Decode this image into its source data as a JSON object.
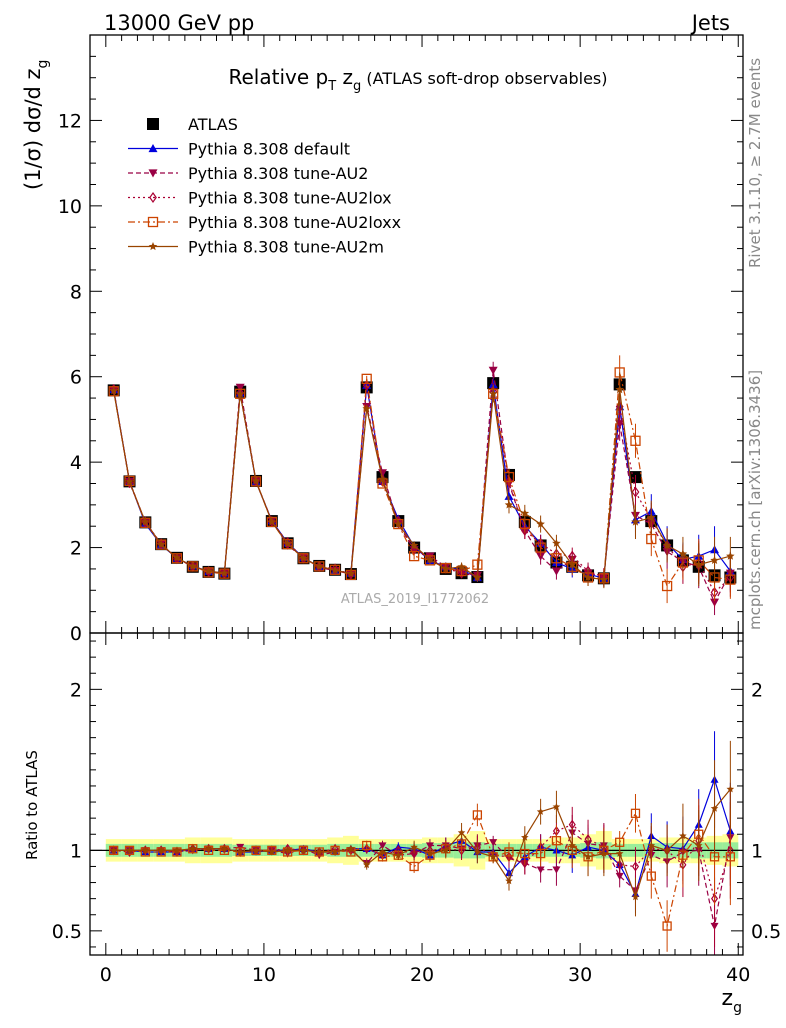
{
  "header": {
    "left": "13000 GeV pp",
    "right": "Jets",
    "side_rivet": "Rivet 3.1.10, ≥ 2.7M events",
    "side_mcplots": "mcplots.cern.ch [arXiv:1306.3436]"
  },
  "chart_data": {
    "type": "scatter",
    "title_main": "Relative p",
    "title_sub": "T",
    "title_mid": " z",
    "title_sub2": "g",
    "title_rest": " (ATLAS soft-drop observables)",
    "analysis_label": "ATLAS_2019_I1772062",
    "xlabel": "z",
    "xlabel_sub": "g",
    "ylabel": "(1/σ) dσ/d z",
    "ylabel_sub": "g",
    "ratio_ylabel": "Ratio to ATLAS",
    "xlim": [
      -1,
      40.3
    ],
    "ylim": [
      0,
      14
    ],
    "ratio_ylim": [
      0.35,
      2.35
    ],
    "grid": false,
    "legend_placement": "top-left",
    "xticks": [
      "0",
      "10",
      "20",
      "30",
      "40"
    ],
    "yticks": [
      "0",
      "2",
      "4",
      "6",
      "8",
      "10",
      "12"
    ],
    "ratio_yticks": [
      "0.5",
      "1",
      "2"
    ],
    "x": [
      0.5,
      1.5,
      2.5,
      3.5,
      4.5,
      5.5,
      6.5,
      7.5,
      8.5,
      9.5,
      10.5,
      11.5,
      12.5,
      13.5,
      14.5,
      15.5,
      16.5,
      17.5,
      18.5,
      19.5,
      20.5,
      21.5,
      22.5,
      23.5,
      24.5,
      25.5,
      26.5,
      27.5,
      28.5,
      29.5,
      30.5,
      31.5,
      32.5,
      33.5,
      34.5,
      35.5,
      36.5,
      37.5,
      38.5,
      39.5
    ],
    "series": [
      {
        "name": "ATLAS",
        "color": "#000000",
        "marker": "square-filled",
        "line": "none",
        "values": [
          5.68,
          3.55,
          2.59,
          2.08,
          1.76,
          1.55,
          1.43,
          1.39,
          5.65,
          3.56,
          2.62,
          2.1,
          1.75,
          1.57,
          1.48,
          1.38,
          5.75,
          3.65,
          2.62,
          2.0,
          1.75,
          1.5,
          1.4,
          1.31,
          5.85,
          3.7,
          2.6,
          2.05,
          1.65,
          1.55,
          1.35,
          1.28,
          5.82,
          3.65,
          2.62,
          2.05,
          1.7,
          1.55,
          1.35,
          1.3
        ],
        "ratio_band_inner": [
          0.04,
          0.04,
          0.04,
          0.04,
          0.04,
          0.04,
          0.04,
          0.04,
          0.035,
          0.035,
          0.035,
          0.035,
          0.035,
          0.035,
          0.04,
          0.04,
          0.04,
          0.04,
          0.04,
          0.04,
          0.045,
          0.045,
          0.05,
          0.05,
          0.04,
          0.04,
          0.04,
          0.04,
          0.04,
          0.04,
          0.045,
          0.05,
          0.04,
          0.04,
          0.045,
          0.045,
          0.045,
          0.05,
          0.05,
          0.05
        ],
        "ratio_band_outer": [
          0.07,
          0.07,
          0.07,
          0.07,
          0.07,
          0.08,
          0.08,
          0.08,
          0.07,
          0.07,
          0.07,
          0.07,
          0.07,
          0.07,
          0.08,
          0.09,
          0.07,
          0.07,
          0.07,
          0.07,
          0.08,
          0.08,
          0.1,
          0.12,
          0.07,
          0.07,
          0.07,
          0.07,
          0.08,
          0.08,
          0.1,
          0.12,
          0.07,
          0.07,
          0.07,
          0.08,
          0.08,
          0.08,
          0.09,
          0.1
        ]
      },
      {
        "name": "Pythia 8.308 default",
        "color": "#0000dd",
        "marker": "triangle-up",
        "line": "solid",
        "values": [
          5.7,
          3.55,
          2.56,
          2.06,
          1.75,
          1.57,
          1.44,
          1.4,
          5.62,
          3.54,
          2.63,
          2.11,
          1.76,
          1.55,
          1.46,
          1.4,
          5.8,
          3.55,
          2.67,
          2.02,
          1.7,
          1.55,
          1.48,
          1.3,
          5.82,
          3.2,
          2.5,
          2.1,
          1.65,
          1.5,
          1.38,
          1.28,
          5.3,
          2.65,
          2.85,
          2.1,
          1.72,
          1.8,
          1.95,
          1.45
        ],
        "errors": [
          0.05,
          0.04,
          0.04,
          0.03,
          0.03,
          0.03,
          0.03,
          0.03,
          0.05,
          0.04,
          0.04,
          0.03,
          0.03,
          0.03,
          0.03,
          0.03,
          0.07,
          0.07,
          0.07,
          0.08,
          0.08,
          0.1,
          0.1,
          0.1,
          0.2,
          0.2,
          0.2,
          0.2,
          0.2,
          0.2,
          0.2,
          0.2,
          0.4,
          0.4,
          0.4,
          0.4,
          0.4,
          0.5,
          0.55,
          0.45
        ],
        "ratio": [
          1.0,
          1.0,
          0.99,
          0.99,
          0.99,
          1.01,
          1.01,
          1.01,
          0.99,
          0.99,
          1.0,
          1.0,
          1.01,
          0.99,
          0.99,
          1.01,
          1.01,
          0.97,
          1.02,
          1.01,
          0.97,
          1.03,
          1.06,
          0.99,
          0.99,
          0.86,
          0.96,
          1.02,
          1.0,
          0.97,
          1.02,
          1.0,
          0.91,
          0.73,
          1.09,
          1.02,
          1.01,
          1.16,
          1.44,
          1.12
        ],
        "ratio_err": [
          0.02,
          0.02,
          0.02,
          0.02,
          0.02,
          0.02,
          0.02,
          0.02,
          0.02,
          0.02,
          0.02,
          0.02,
          0.02,
          0.02,
          0.02,
          0.02,
          0.03,
          0.03,
          0.03,
          0.04,
          0.04,
          0.05,
          0.06,
          0.07,
          0.04,
          0.06,
          0.07,
          0.08,
          0.1,
          0.11,
          0.12,
          0.14,
          0.07,
          0.12,
          0.14,
          0.16,
          0.2,
          0.22,
          0.3,
          0.3
        ]
      },
      {
        "name": "Pythia 8.308 tune-AU2",
        "color": "#990044",
        "marker": "triangle-down",
        "line": "dashed",
        "values": [
          5.68,
          3.55,
          2.6,
          2.08,
          1.75,
          1.55,
          1.45,
          1.4,
          5.75,
          3.55,
          2.63,
          2.05,
          1.77,
          1.53,
          1.46,
          1.38,
          5.3,
          3.75,
          2.55,
          1.95,
          1.8,
          1.55,
          1.42,
          1.35,
          6.15,
          3.5,
          2.4,
          1.8,
          1.45,
          1.72,
          1.4,
          1.32,
          4.9,
          2.75,
          2.55,
          1.9,
          1.68,
          1.55,
          0.72,
          1.4
        ],
        "errors": [
          0.05,
          0.04,
          0.04,
          0.03,
          0.03,
          0.03,
          0.03,
          0.03,
          0.05,
          0.04,
          0.04,
          0.03,
          0.03,
          0.03,
          0.03,
          0.03,
          0.07,
          0.07,
          0.07,
          0.08,
          0.08,
          0.1,
          0.1,
          0.1,
          0.2,
          0.2,
          0.2,
          0.2,
          0.2,
          0.2,
          0.2,
          0.2,
          0.4,
          0.4,
          0.4,
          0.4,
          0.4,
          0.5,
          0.3,
          0.45
        ],
        "ratio": [
          1.0,
          1.0,
          1.0,
          1.0,
          0.99,
          1.0,
          1.01,
          1.01,
          1.02,
          1.0,
          1.0,
          0.98,
          1.01,
          0.97,
          0.99,
          1.0,
          0.92,
          1.03,
          0.97,
          0.98,
          1.03,
          1.03,
          1.01,
          1.03,
          1.05,
          0.95,
          0.92,
          0.88,
          0.88,
          1.11,
          1.04,
          1.03,
          0.84,
          0.75,
          0.97,
          0.93,
          0.99,
          1.0,
          0.53,
          1.08
        ],
        "ratio_err": [
          0.02,
          0.02,
          0.02,
          0.02,
          0.02,
          0.02,
          0.02,
          0.02,
          0.02,
          0.02,
          0.02,
          0.02,
          0.02,
          0.02,
          0.02,
          0.02,
          0.03,
          0.03,
          0.03,
          0.04,
          0.04,
          0.05,
          0.06,
          0.07,
          0.04,
          0.06,
          0.07,
          0.08,
          0.1,
          0.11,
          0.12,
          0.14,
          0.07,
          0.12,
          0.14,
          0.16,
          0.2,
          0.22,
          0.3,
          0.3
        ]
      },
      {
        "name": "Pythia 8.308 tune-AU2lox",
        "color": "#aa0033",
        "marker": "diamond-open",
        "line": "dotted",
        "values": [
          5.7,
          3.52,
          2.6,
          2.09,
          1.74,
          1.56,
          1.44,
          1.4,
          5.62,
          3.56,
          2.61,
          2.12,
          1.75,
          1.56,
          1.5,
          1.38,
          5.8,
          3.55,
          2.62,
          1.95,
          1.75,
          1.52,
          1.4,
          1.33,
          5.65,
          3.55,
          2.4,
          2.1,
          1.85,
          1.8,
          1.45,
          1.31,
          5.3,
          3.3,
          2.65,
          2.05,
          1.55,
          1.65,
          0.95,
          1.3
        ],
        "errors": [
          0.05,
          0.04,
          0.04,
          0.03,
          0.03,
          0.03,
          0.03,
          0.03,
          0.05,
          0.04,
          0.04,
          0.03,
          0.03,
          0.03,
          0.03,
          0.03,
          0.07,
          0.07,
          0.07,
          0.08,
          0.08,
          0.1,
          0.1,
          0.1,
          0.2,
          0.2,
          0.2,
          0.2,
          0.2,
          0.2,
          0.2,
          0.2,
          0.4,
          0.4,
          0.4,
          0.4,
          0.4,
          0.5,
          0.35,
          0.45
        ],
        "ratio": [
          1.0,
          0.99,
          1.0,
          1.0,
          0.99,
          1.01,
          1.01,
          1.01,
          0.99,
          1.0,
          1.0,
          1.01,
          1.0,
          0.99,
          1.01,
          1.0,
          1.01,
          0.97,
          1.0,
          0.98,
          1.0,
          1.01,
          1.0,
          1.02,
          0.97,
          0.96,
          0.92,
          1.02,
          1.12,
          1.16,
          1.07,
          1.02,
          0.91,
          0.9,
          1.01,
          1.0,
          0.91,
          1.06,
          0.7,
          1.0
        ],
        "ratio_err": [
          0.02,
          0.02,
          0.02,
          0.02,
          0.02,
          0.02,
          0.02,
          0.02,
          0.02,
          0.02,
          0.02,
          0.02,
          0.02,
          0.02,
          0.02,
          0.02,
          0.03,
          0.03,
          0.03,
          0.04,
          0.04,
          0.05,
          0.06,
          0.07,
          0.04,
          0.06,
          0.07,
          0.08,
          0.1,
          0.11,
          0.12,
          0.14,
          0.07,
          0.12,
          0.14,
          0.16,
          0.2,
          0.22,
          0.3,
          0.3
        ]
      },
      {
        "name": "Pythia 8.308 tune-AU2loxx",
        "color": "#cc4400",
        "marker": "square-open",
        "line": "dashdot",
        "values": [
          5.66,
          3.56,
          2.58,
          2.07,
          1.75,
          1.56,
          1.42,
          1.39,
          5.6,
          3.55,
          2.6,
          2.08,
          1.75,
          1.56,
          1.48,
          1.36,
          5.95,
          3.5,
          2.55,
          1.8,
          1.7,
          1.52,
          1.45,
          1.6,
          5.6,
          3.65,
          2.55,
          2.0,
          1.75,
          1.55,
          1.3,
          1.28,
          6.1,
          4.5,
          2.2,
          1.1,
          1.65,
          1.7,
          1.3,
          1.25
        ],
        "errors": [
          0.05,
          0.04,
          0.04,
          0.03,
          0.03,
          0.03,
          0.03,
          0.03,
          0.05,
          0.04,
          0.04,
          0.03,
          0.03,
          0.03,
          0.03,
          0.03,
          0.07,
          0.07,
          0.07,
          0.08,
          0.08,
          0.1,
          0.1,
          0.1,
          0.2,
          0.2,
          0.2,
          0.2,
          0.2,
          0.2,
          0.2,
          0.2,
          0.4,
          0.4,
          0.4,
          0.4,
          0.4,
          0.5,
          0.55,
          0.45
        ],
        "ratio": [
          1.0,
          1.0,
          0.99,
          0.99,
          0.99,
          1.01,
          1.0,
          1.0,
          0.99,
          1.0,
          1.0,
          0.99,
          1.0,
          0.99,
          1.0,
          0.99,
          1.03,
          0.96,
          0.97,
          0.9,
          0.97,
          1.01,
          1.04,
          1.22,
          0.96,
          0.99,
          0.98,
          0.98,
          1.06,
          1.0,
          0.96,
          1.0,
          1.05,
          1.23,
          0.84,
          0.53,
          0.97,
          1.1,
          0.96,
          0.96
        ],
        "ratio_err": [
          0.02,
          0.02,
          0.02,
          0.02,
          0.02,
          0.02,
          0.02,
          0.02,
          0.02,
          0.02,
          0.02,
          0.02,
          0.02,
          0.02,
          0.02,
          0.02,
          0.03,
          0.03,
          0.03,
          0.04,
          0.04,
          0.05,
          0.06,
          0.07,
          0.04,
          0.06,
          0.07,
          0.08,
          0.1,
          0.11,
          0.12,
          0.14,
          0.07,
          0.12,
          0.14,
          0.16,
          0.2,
          0.22,
          0.3,
          0.3
        ]
      },
      {
        "name": "Pythia 8.308 tune-AU2m",
        "color": "#994400",
        "marker": "star",
        "line": "solid",
        "values": [
          5.67,
          3.54,
          2.6,
          2.07,
          1.76,
          1.56,
          1.45,
          1.4,
          5.6,
          3.56,
          2.6,
          2.09,
          1.75,
          1.56,
          1.47,
          1.39,
          5.25,
          3.6,
          2.55,
          2.05,
          1.72,
          1.5,
          1.55,
          1.3,
          5.6,
          3.0,
          2.8,
          2.55,
          2.1,
          1.6,
          1.3,
          1.25,
          5.7,
          2.6,
          2.7,
          2.05,
          1.85,
          1.6,
          1.7,
          1.8
        ],
        "errors": [
          0.05,
          0.04,
          0.04,
          0.03,
          0.03,
          0.03,
          0.03,
          0.03,
          0.05,
          0.04,
          0.04,
          0.03,
          0.03,
          0.03,
          0.03,
          0.03,
          0.07,
          0.07,
          0.07,
          0.08,
          0.08,
          0.1,
          0.1,
          0.1,
          0.2,
          0.2,
          0.2,
          0.2,
          0.2,
          0.2,
          0.2,
          0.2,
          0.4,
          0.4,
          0.4,
          0.4,
          0.4,
          0.5,
          0.55,
          0.45
        ],
        "ratio": [
          1.0,
          1.0,
          1.0,
          1.0,
          1.0,
          1.01,
          1.01,
          1.01,
          0.99,
          1.0,
          0.99,
          1.0,
          1.0,
          0.99,
          0.99,
          1.01,
          0.91,
          0.99,
          0.97,
          1.02,
          0.98,
          1.0,
          1.11,
          0.99,
          0.96,
          0.81,
          1.08,
          1.24,
          1.27,
          1.03,
          0.96,
          0.98,
          0.98,
          0.71,
          1.03,
          1.0,
          1.09,
          1.03,
          1.26,
          1.38
        ],
        "ratio_err": [
          0.02,
          0.02,
          0.02,
          0.02,
          0.02,
          0.02,
          0.02,
          0.02,
          0.02,
          0.02,
          0.02,
          0.02,
          0.02,
          0.02,
          0.02,
          0.02,
          0.03,
          0.03,
          0.03,
          0.04,
          0.04,
          0.05,
          0.06,
          0.07,
          0.04,
          0.06,
          0.07,
          0.08,
          0.1,
          0.11,
          0.12,
          0.14,
          0.07,
          0.12,
          0.14,
          0.16,
          0.2,
          0.22,
          0.3,
          0.3
        ]
      }
    ]
  }
}
